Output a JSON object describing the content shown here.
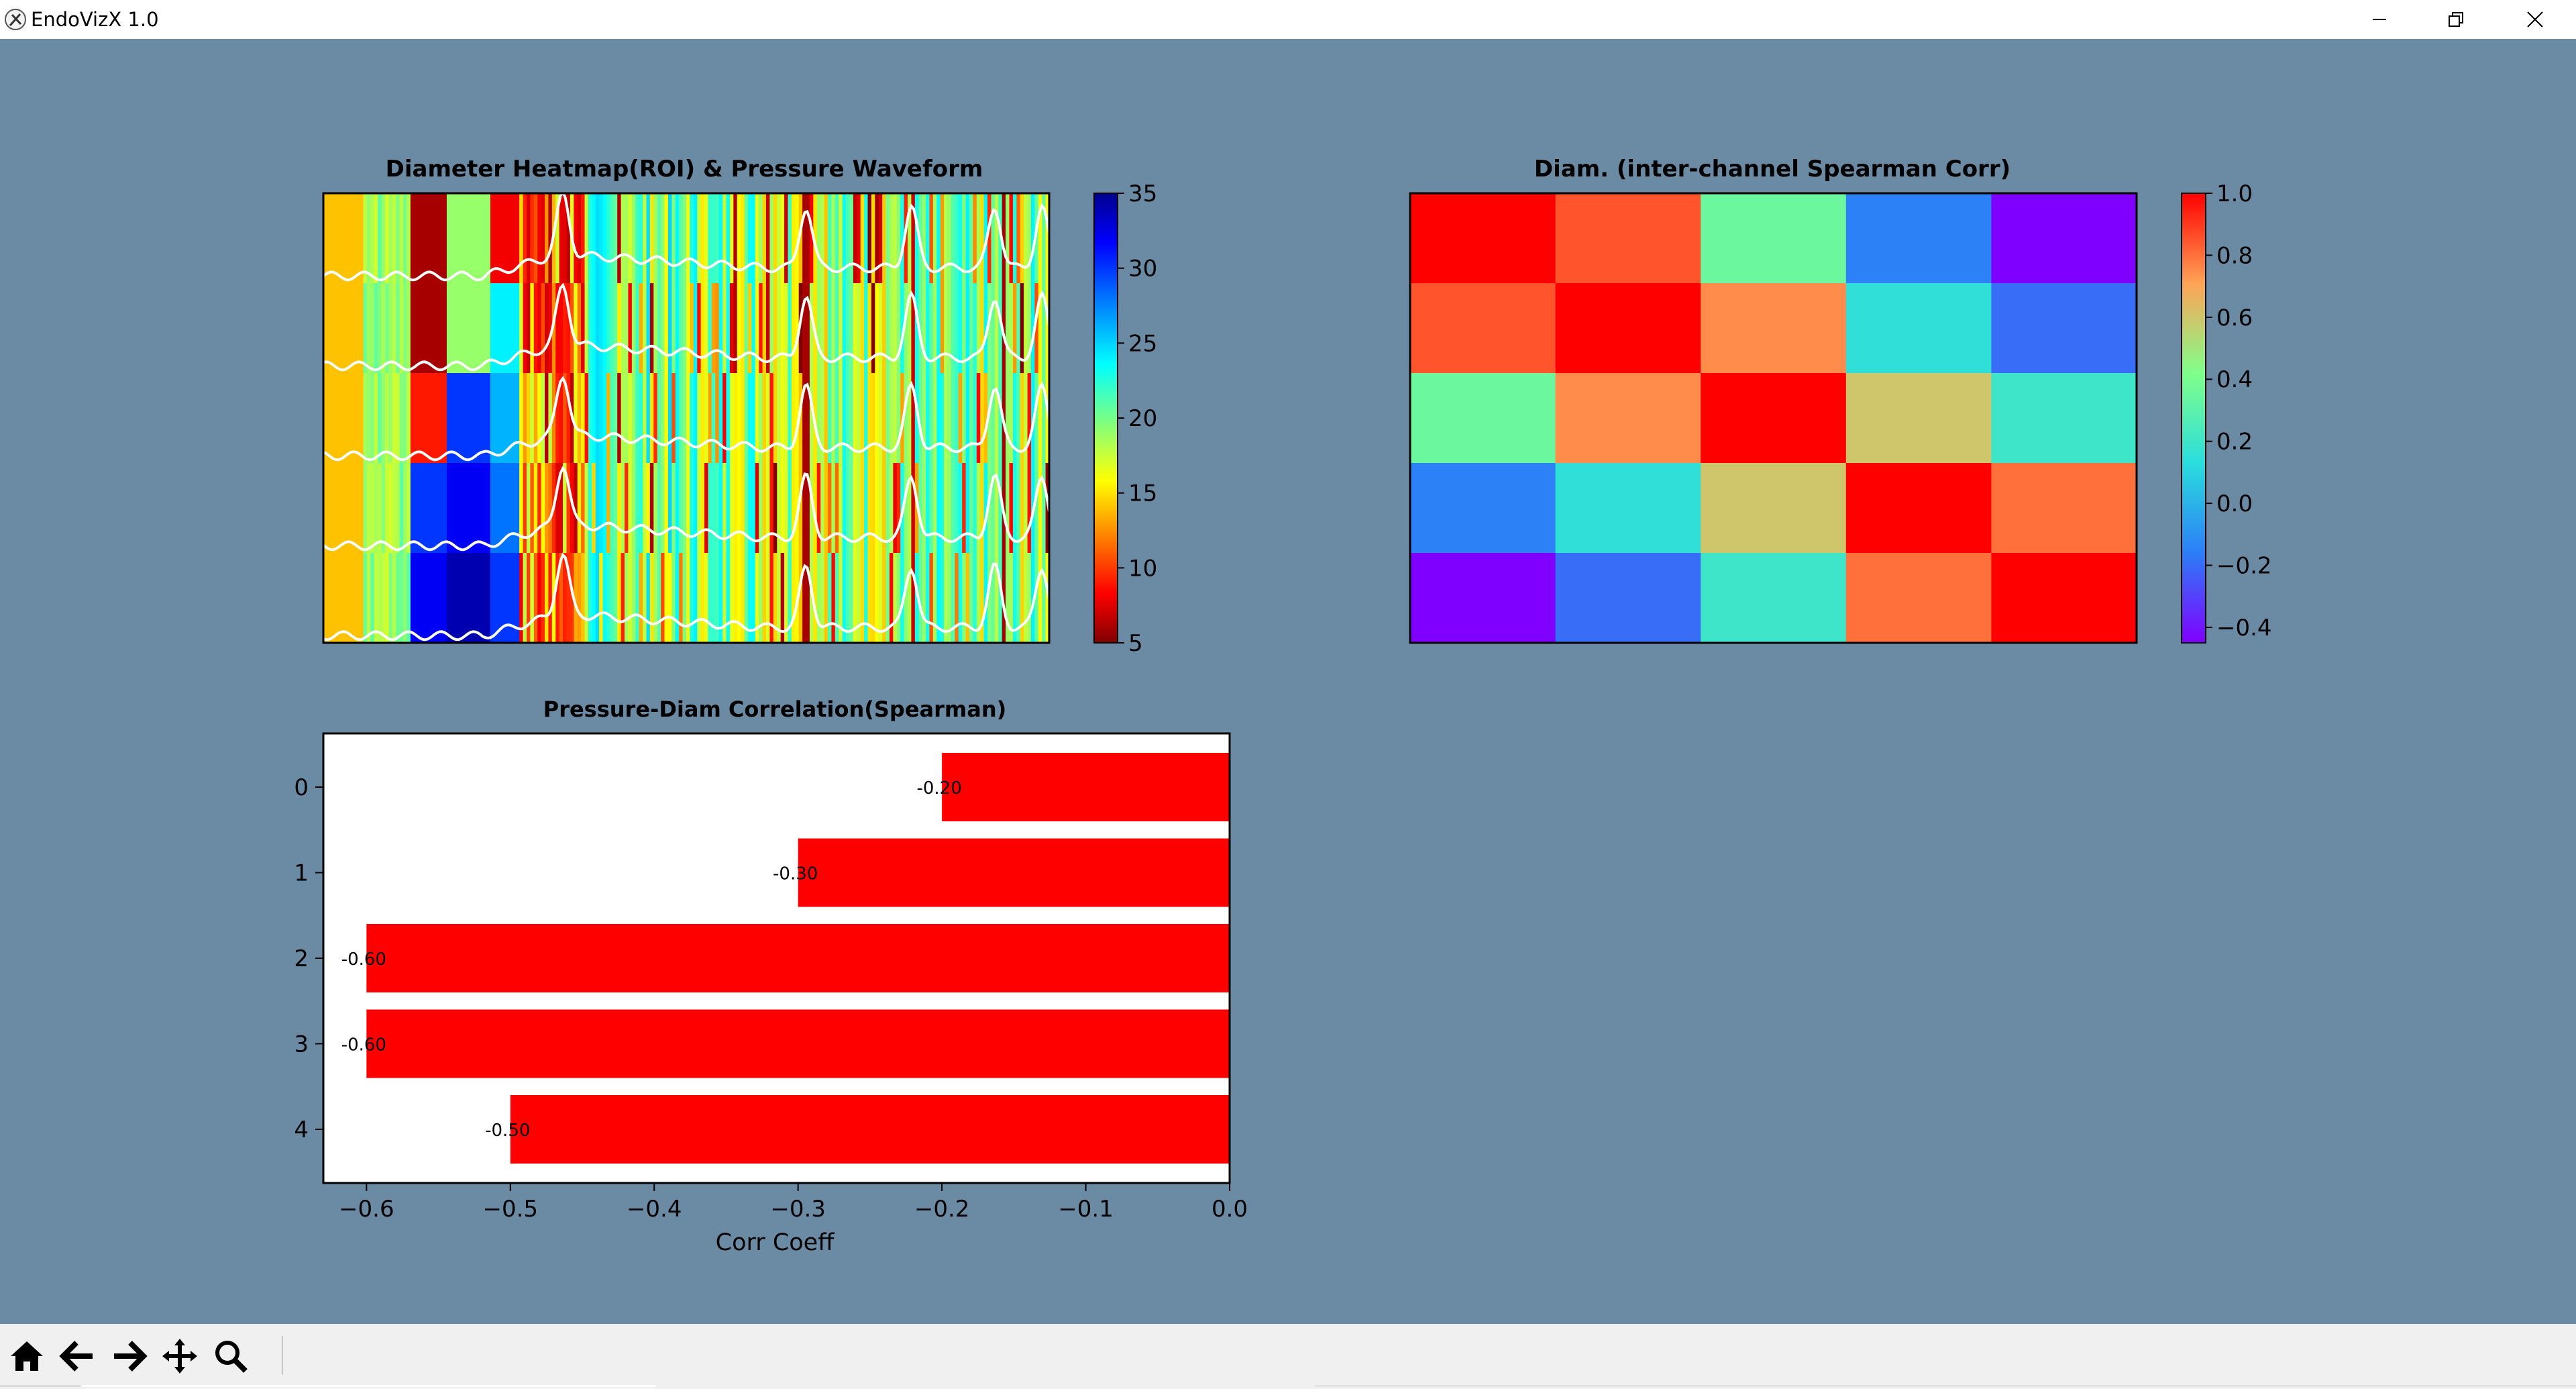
{
  "window": {
    "title": "EndoVizX 1.0",
    "icon": "app-logo-icon",
    "controls": [
      "minimize-icon",
      "restore-icon",
      "close-icon"
    ]
  },
  "toolbar": {
    "buttons": [
      "home-icon",
      "back-arrow-icon",
      "forward-arrow-icon",
      "pan-move-icon",
      "zoom-magnifier-icon"
    ]
  },
  "colors": {
    "figure_bg": "#6b8ba4",
    "bar": "#ff0000",
    "trace": "#ffffff"
  },
  "chart_data": [
    {
      "id": "heatmap-waveform",
      "type": "heatmap",
      "title": "Diameter Heatmap(ROI) & Pressure Waveform",
      "colormap": "jet_r",
      "colorbar": {
        "min": 5,
        "max": 35,
        "ticks": [
          "5",
          "10",
          "15",
          "20",
          "25",
          "30",
          "35"
        ]
      },
      "rows": 5,
      "pressure_traces": 5,
      "grid": false
    },
    {
      "id": "inter-channel-corr",
      "type": "heatmap",
      "title": "Diam. (inter-channel Spearman Corr)",
      "colormap": "rainbow",
      "colorbar": {
        "min": -0.45,
        "max": 1.0,
        "ticks": [
          "−0.4",
          "−0.2",
          "0.0",
          "0.2",
          "0.4",
          "0.6",
          "0.8",
          "1.0"
        ]
      },
      "matrix": [
        [
          1.0,
          0.85,
          0.35,
          -0.15,
          -0.45
        ],
        [
          0.85,
          1.0,
          0.75,
          0.15,
          -0.2
        ],
        [
          0.35,
          0.75,
          1.0,
          0.6,
          0.2
        ],
        [
          -0.15,
          0.15,
          0.6,
          1.0,
          0.8
        ],
        [
          -0.45,
          -0.2,
          0.2,
          0.8,
          1.0
        ]
      ]
    },
    {
      "id": "pressure-diam-corr",
      "type": "bar",
      "orientation": "horizontal",
      "title": "Pressure-Diam Correlation(Spearman)",
      "xlabel": "Corr Coeff",
      "categories": [
        "0",
        "1",
        "2",
        "3",
        "4"
      ],
      "values": [
        -0.2,
        -0.3,
        -0.6,
        -0.6,
        -0.5
      ],
      "data_labels": [
        "-0.20",
        "-0.30",
        "-0.60",
        "-0.60",
        "-0.50"
      ],
      "xlim": [
        -0.63,
        0.0
      ],
      "xticks": [
        "−0.6",
        "−0.5",
        "−0.4",
        "−0.3",
        "−0.2",
        "−0.1",
        "0.0"
      ],
      "grid": false
    }
  ]
}
